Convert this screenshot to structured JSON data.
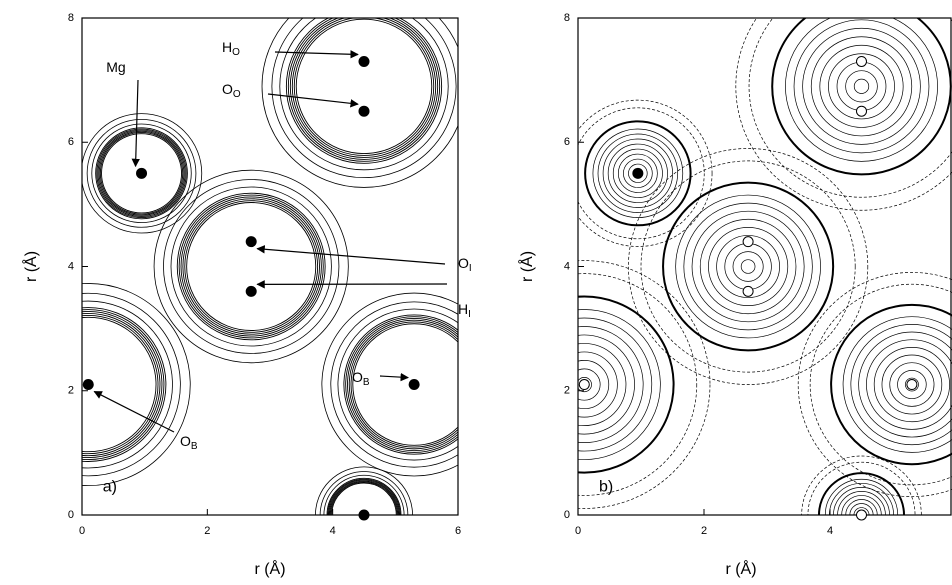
{
  "chart_data": [
    {
      "type": "contour",
      "panel_label": "a)",
      "x_label": "r (Å)",
      "y_label": "r (Å)",
      "xlim": [
        0,
        6
      ],
      "ylim": [
        0,
        8
      ],
      "xticks": [
        0,
        2,
        4,
        6
      ],
      "yticks": [
        0,
        2,
        4,
        6,
        8
      ],
      "point_color": "#000000",
      "points": [
        {
          "label": "Mg",
          "x": 0.95,
          "y": 5.5
        },
        {
          "label": "H",
          "sub": "O",
          "x": 4.5,
          "y": 7.3
        },
        {
          "label": "O",
          "sub": "O",
          "x": 4.5,
          "y": 6.5
        },
        {
          "label": "O",
          "sub": "I",
          "x": 2.7,
          "y": 4.4
        },
        {
          "label": "H",
          "sub": "I",
          "x": 2.7,
          "y": 3.6
        },
        {
          "label": "O",
          "sub": "B",
          "x": 5.3,
          "y": 2.1
        },
        {
          "label": "O",
          "sub": "B",
          "x": 0.1,
          "y": 2.1
        },
        {
          "x": 4.5,
          "y": 0.0
        }
      ]
    },
    {
      "type": "contour",
      "panel_label": "b)",
      "x_label": "r (Å)",
      "y_label": "r (Å)",
      "xlim": [
        0,
        6
      ],
      "ylim": [
        0,
        8
      ],
      "xticks": [
        0,
        2,
        4
      ],
      "yticks": [
        0,
        2,
        4,
        6,
        8
      ],
      "point_color": "#ffffff",
      "points": [
        {
          "x": 0.95,
          "y": 5.5
        },
        {
          "x": 4.5,
          "y": 7.3
        },
        {
          "x": 4.5,
          "y": 6.5
        },
        {
          "x": 2.7,
          "y": 4.4
        },
        {
          "x": 2.7,
          "y": 3.6
        },
        {
          "x": 5.3,
          "y": 2.1
        },
        {
          "x": 0.1,
          "y": 2.1
        },
        {
          "x": 4.5,
          "y": 0.0
        }
      ]
    }
  ]
}
